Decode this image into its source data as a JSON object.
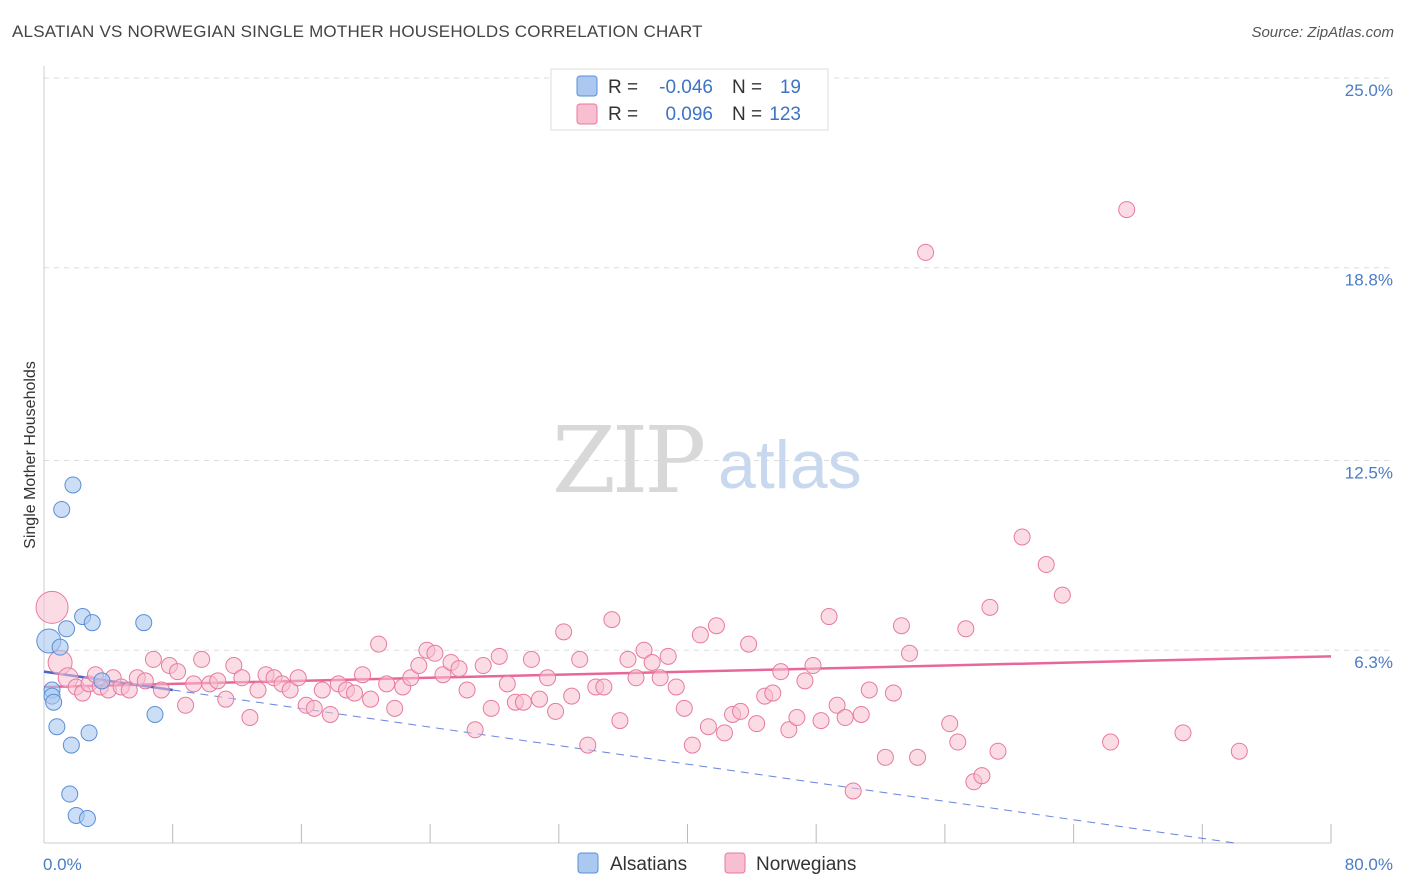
{
  "header": {
    "title": "ALSATIAN VS NORWEGIAN SINGLE MOTHER HOUSEHOLDS CORRELATION CHART",
    "source": "Source: ZipAtlas.com"
  },
  "watermark": {
    "zip": "ZIP",
    "atlas": "atlas"
  },
  "colors": {
    "alsatian_fill": "#aac8f0",
    "alsatian_stroke": "#5a8fd8",
    "alsatian_line": "#4466cc",
    "norwegian_fill": "#f7bfd0",
    "norwegian_stroke": "#e87aa0",
    "norwegian_line": "#e8679a",
    "grid": "#dddddd",
    "axis_text": "#4a7cc7"
  },
  "stats": {
    "r_label": "R =",
    "n_label": "N =",
    "alsatian": {
      "r": "-0.046",
      "n": "19"
    },
    "norwegian": {
      "r": "0.096",
      "n": "123"
    }
  },
  "chart_data": {
    "type": "scatter",
    "title": "ALSATIAN VS NORWEGIAN SINGLE MOTHER HOUSEHOLDS CORRELATION CHART",
    "xlabel": "",
    "ylabel": "Single Mother Households",
    "xlim": [
      0,
      80
    ],
    "ylim": [
      0,
      25
    ],
    "x_tick_labels": [
      "0.0%",
      "80.0%"
    ],
    "y_ticks": [
      6.3,
      12.5,
      18.8,
      25.0
    ],
    "y_tick_labels": [
      "6.3%",
      "12.5%",
      "18.8%",
      "25.0%"
    ],
    "legend": {
      "position": "bottom-center",
      "entries": [
        "Alsatians",
        "Norwegians"
      ]
    },
    "series": [
      {
        "name": "Alsatians",
        "points": [
          [
            0.3,
            6.6,
            12
          ],
          [
            0.5,
            5.0,
            8
          ],
          [
            0.5,
            4.8,
            8
          ],
          [
            0.6,
            4.6,
            8
          ],
          [
            0.8,
            3.8,
            8
          ],
          [
            1.0,
            6.4,
            8
          ],
          [
            1.1,
            10.9,
            8
          ],
          [
            1.4,
            7.0,
            8
          ],
          [
            1.6,
            1.6,
            8
          ],
          [
            1.7,
            3.2,
            8
          ],
          [
            1.8,
            11.7,
            8
          ],
          [
            2.0,
            0.9,
            8
          ],
          [
            2.4,
            7.4,
            8
          ],
          [
            2.7,
            0.8,
            8
          ],
          [
            2.8,
            3.6,
            8
          ],
          [
            3.0,
            7.2,
            8
          ],
          [
            3.6,
            5.3,
            8
          ],
          [
            6.2,
            7.2,
            8
          ],
          [
            6.9,
            4.2,
            8
          ]
        ],
        "trend": {
          "x": [
            0,
            8
          ],
          "y": [
            5.6,
            5.0
          ]
        },
        "trend_ext": {
          "x": [
            8,
            74
          ],
          "y": [
            5.0,
            0.0
          ]
        }
      },
      {
        "name": "Norwegians",
        "points": [
          [
            0.5,
            7.7,
            16
          ],
          [
            1.0,
            5.9,
            12
          ],
          [
            1.5,
            5.4,
            10
          ],
          [
            2.0,
            5.1,
            8
          ],
          [
            2.4,
            4.9,
            8
          ],
          [
            2.8,
            5.2,
            8
          ],
          [
            3.2,
            5.5,
            8
          ],
          [
            3.5,
            5.1,
            8
          ],
          [
            4.0,
            5.0,
            8
          ],
          [
            4.3,
            5.4,
            8
          ],
          [
            4.8,
            5.1,
            8
          ],
          [
            5.3,
            5.0,
            8
          ],
          [
            5.8,
            5.4,
            8
          ],
          [
            6.3,
            5.3,
            8
          ],
          [
            6.8,
            6.0,
            8
          ],
          [
            7.3,
            5.0,
            8
          ],
          [
            7.8,
            5.8,
            8
          ],
          [
            8.3,
            5.6,
            8
          ],
          [
            8.8,
            4.5,
            8
          ],
          [
            9.3,
            5.2,
            8
          ],
          [
            9.8,
            6.0,
            8
          ],
          [
            10.3,
            5.2,
            8
          ],
          [
            10.8,
            5.3,
            8
          ],
          [
            11.3,
            4.7,
            8
          ],
          [
            11.8,
            5.8,
            8
          ],
          [
            12.3,
            5.4,
            8
          ],
          [
            12.8,
            4.1,
            8
          ],
          [
            13.3,
            5.0,
            8
          ],
          [
            13.8,
            5.5,
            8
          ],
          [
            14.3,
            5.4,
            8
          ],
          [
            14.8,
            5.2,
            8
          ],
          [
            15.3,
            5.0,
            8
          ],
          [
            15.8,
            5.4,
            8
          ],
          [
            16.3,
            4.5,
            8
          ],
          [
            16.8,
            4.4,
            8
          ],
          [
            17.3,
            5.0,
            8
          ],
          [
            17.8,
            4.2,
            8
          ],
          [
            18.3,
            5.2,
            8
          ],
          [
            18.8,
            5.0,
            8
          ],
          [
            19.3,
            4.9,
            8
          ],
          [
            19.8,
            5.5,
            8
          ],
          [
            20.3,
            4.7,
            8
          ],
          [
            20.8,
            6.5,
            8
          ],
          [
            21.3,
            5.2,
            8
          ],
          [
            21.8,
            4.4,
            8
          ],
          [
            22.3,
            5.1,
            8
          ],
          [
            22.8,
            5.4,
            8
          ],
          [
            23.3,
            5.8,
            8
          ],
          [
            23.8,
            6.3,
            8
          ],
          [
            24.3,
            6.2,
            8
          ],
          [
            24.8,
            5.5,
            8
          ],
          [
            25.3,
            5.9,
            8
          ],
          [
            25.8,
            5.7,
            8
          ],
          [
            26.3,
            5.0,
            8
          ],
          [
            26.8,
            3.7,
            8
          ],
          [
            27.3,
            5.8,
            8
          ],
          [
            27.8,
            4.4,
            8
          ],
          [
            28.3,
            6.1,
            8
          ],
          [
            28.8,
            5.2,
            8
          ],
          [
            29.3,
            4.6,
            8
          ],
          [
            29.8,
            4.6,
            8
          ],
          [
            30.3,
            6.0,
            8
          ],
          [
            30.8,
            4.7,
            8
          ],
          [
            31.3,
            5.4,
            8
          ],
          [
            31.8,
            4.3,
            8
          ],
          [
            32.3,
            6.9,
            8
          ],
          [
            32.8,
            4.8,
            8
          ],
          [
            33.3,
            6.0,
            8
          ],
          [
            33.8,
            3.2,
            8
          ],
          [
            34.3,
            5.1,
            8
          ],
          [
            34.8,
            5.1,
            8
          ],
          [
            35.3,
            7.3,
            8
          ],
          [
            35.8,
            4.0,
            8
          ],
          [
            36.3,
            6.0,
            8
          ],
          [
            36.8,
            5.4,
            8
          ],
          [
            37.3,
            6.3,
            8
          ],
          [
            37.8,
            5.9,
            8
          ],
          [
            38.3,
            5.4,
            8
          ],
          [
            38.8,
            6.1,
            8
          ],
          [
            39.3,
            5.1,
            8
          ],
          [
            39.8,
            4.4,
            8
          ],
          [
            40.3,
            3.2,
            8
          ],
          [
            40.8,
            6.8,
            8
          ],
          [
            41.3,
            3.8,
            8
          ],
          [
            41.8,
            7.1,
            8
          ],
          [
            42.3,
            3.6,
            8
          ],
          [
            42.8,
            4.2,
            8
          ],
          [
            43.3,
            4.3,
            8
          ],
          [
            43.8,
            6.5,
            8
          ],
          [
            44.3,
            3.9,
            8
          ],
          [
            44.8,
            4.8,
            8
          ],
          [
            45.3,
            4.9,
            8
          ],
          [
            45.8,
            5.6,
            8
          ],
          [
            46.3,
            3.7,
            8
          ],
          [
            46.8,
            4.1,
            8
          ],
          [
            47.3,
            5.3,
            8
          ],
          [
            47.8,
            5.8,
            8
          ],
          [
            48.3,
            4.0,
            8
          ],
          [
            48.8,
            7.4,
            8
          ],
          [
            49.3,
            4.5,
            8
          ],
          [
            49.8,
            4.1,
            8
          ],
          [
            50.3,
            1.7,
            8
          ],
          [
            50.8,
            4.2,
            8
          ],
          [
            51.3,
            5.0,
            8
          ],
          [
            52.3,
            2.8,
            8
          ],
          [
            52.8,
            4.9,
            8
          ],
          [
            53.3,
            7.1,
            8
          ],
          [
            53.8,
            6.2,
            8
          ],
          [
            54.3,
            2.8,
            8
          ],
          [
            54.8,
            19.3,
            8
          ],
          [
            56.3,
            3.9,
            8
          ],
          [
            56.8,
            3.3,
            8
          ],
          [
            57.3,
            7.0,
            8
          ],
          [
            57.8,
            2.0,
            8
          ],
          [
            58.3,
            2.2,
            8
          ],
          [
            58.8,
            7.7,
            8
          ],
          [
            59.3,
            3.0,
            8
          ],
          [
            60.8,
            10.0,
            8
          ],
          [
            62.3,
            9.1,
            8
          ],
          [
            63.3,
            8.1,
            8
          ],
          [
            66.3,
            3.3,
            8
          ],
          [
            67.3,
            20.7,
            8
          ],
          [
            70.8,
            3.6,
            8
          ],
          [
            74.3,
            3.0,
            8
          ]
        ],
        "trend": {
          "x": [
            0,
            80
          ],
          "y": [
            5.1,
            6.1
          ]
        }
      }
    ]
  }
}
